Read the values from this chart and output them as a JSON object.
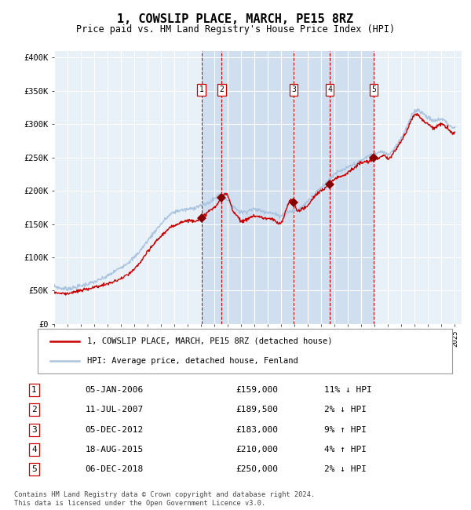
{
  "title": "1, COWSLIP PLACE, MARCH, PE15 8RZ",
  "subtitle": "Price paid vs. HM Land Registry's House Price Index (HPI)",
  "footer_line1": "Contains HM Land Registry data © Crown copyright and database right 2024.",
  "footer_line2": "This data is licensed under the Open Government Licence v3.0.",
  "legend_line1": "1, COWSLIP PLACE, MARCH, PE15 8RZ (detached house)",
  "legend_line2": "HPI: Average price, detached house, Fenland",
  "hpi_color": "#aac4e0",
  "price_color": "#cc0000",
  "marker_color": "#880000",
  "background_color": "#ffffff",
  "chart_bg_color": "#e8f0f8",
  "grid_color": "#ffffff",
  "shade_color": "#d0dff0",
  "vline_color": "#cc0000",
  "ylim": [
    0,
    410000
  ],
  "yticks": [
    0,
    50000,
    100000,
    150000,
    200000,
    250000,
    300000,
    350000,
    400000
  ],
  "ytick_labels": [
    "£0",
    "£50K",
    "£100K",
    "£150K",
    "£200K",
    "£250K",
    "£300K",
    "£350K",
    "£400K"
  ],
  "xlim_start": 1995.0,
  "xlim_end": 2025.5,
  "xtick_years": [
    1995,
    1996,
    1997,
    1998,
    1999,
    2000,
    2001,
    2002,
    2003,
    2004,
    2005,
    2006,
    2007,
    2008,
    2009,
    2010,
    2011,
    2012,
    2013,
    2014,
    2015,
    2016,
    2017,
    2018,
    2019,
    2020,
    2021,
    2022,
    2023,
    2024,
    2025
  ],
  "sales": [
    {
      "num": 1,
      "date": "05-JAN-2006",
      "year": 2006.02,
      "price": 159000,
      "hpi_pct": "11%",
      "hpi_dir": "↓"
    },
    {
      "num": 2,
      "date": "11-JUL-2007",
      "year": 2007.53,
      "price": 189500,
      "hpi_pct": "2%",
      "hpi_dir": "↓"
    },
    {
      "num": 3,
      "date": "05-DEC-2012",
      "year": 2012.92,
      "price": 183000,
      "hpi_pct": "9%",
      "hpi_dir": "↑"
    },
    {
      "num": 4,
      "date": "18-AUG-2015",
      "year": 2015.63,
      "price": 210000,
      "hpi_pct": "4%",
      "hpi_dir": "↑"
    },
    {
      "num": 5,
      "date": "06-DEC-2018",
      "year": 2018.92,
      "price": 250000,
      "hpi_pct": "2%",
      "hpi_dir": "↓"
    }
  ],
  "hpi_keypoints": [
    [
      1995.0,
      57000
    ],
    [
      1996.0,
      53000
    ],
    [
      1997.0,
      57000
    ],
    [
      1998.0,
      63000
    ],
    [
      1999.0,
      72000
    ],
    [
      2000.0,
      85000
    ],
    [
      2001.0,
      100000
    ],
    [
      2002.0,
      125000
    ],
    [
      2003.0,
      150000
    ],
    [
      2004.0,
      168000
    ],
    [
      2005.0,
      172000
    ],
    [
      2006.0,
      178000
    ],
    [
      2007.0,
      188000
    ],
    [
      2007.5,
      195000
    ],
    [
      2008.0,
      185000
    ],
    [
      2008.5,
      175000
    ],
    [
      2009.0,
      168000
    ],
    [
      2009.5,
      170000
    ],
    [
      2010.0,
      172000
    ],
    [
      2010.5,
      170000
    ],
    [
      2011.0,
      168000
    ],
    [
      2011.5,
      165000
    ],
    [
      2012.0,
      163000
    ],
    [
      2012.5,
      168000
    ],
    [
      2013.0,
      170000
    ],
    [
      2013.5,
      175000
    ],
    [
      2014.0,
      185000
    ],
    [
      2014.5,
      195000
    ],
    [
      2015.0,
      205000
    ],
    [
      2015.5,
      215000
    ],
    [
      2016.0,
      225000
    ],
    [
      2016.5,
      230000
    ],
    [
      2017.0,
      235000
    ],
    [
      2017.5,
      240000
    ],
    [
      2018.0,
      245000
    ],
    [
      2018.5,
      252000
    ],
    [
      2019.0,
      255000
    ],
    [
      2019.5,
      258000
    ],
    [
      2020.0,
      255000
    ],
    [
      2020.5,
      265000
    ],
    [
      2021.0,
      280000
    ],
    [
      2021.5,
      300000
    ],
    [
      2022.0,
      320000
    ],
    [
      2022.5,
      318000
    ],
    [
      2023.0,
      310000
    ],
    [
      2023.5,
      305000
    ],
    [
      2024.0,
      308000
    ],
    [
      2024.5,
      300000
    ],
    [
      2025.0,
      295000
    ]
  ],
  "price_keypoints": [
    [
      1995.0,
      48000
    ],
    [
      1996.0,
      46000
    ],
    [
      1997.0,
      50000
    ],
    [
      1998.0,
      55000
    ],
    [
      1999.0,
      60000
    ],
    [
      2000.0,
      68000
    ],
    [
      2001.0,
      82000
    ],
    [
      2002.0,
      108000
    ],
    [
      2003.0,
      132000
    ],
    [
      2004.0,
      148000
    ],
    [
      2005.0,
      155000
    ],
    [
      2006.02,
      159000
    ],
    [
      2006.5,
      168000
    ],
    [
      2007.0,
      175000
    ],
    [
      2007.53,
      189500
    ],
    [
      2008.0,
      192000
    ],
    [
      2008.3,
      175000
    ],
    [
      2008.8,
      160000
    ],
    [
      2009.0,
      155000
    ],
    [
      2009.5,
      158000
    ],
    [
      2010.0,
      162000
    ],
    [
      2010.5,
      160000
    ],
    [
      2011.0,
      158000
    ],
    [
      2011.5,
      155000
    ],
    [
      2012.0,
      152000
    ],
    [
      2012.92,
      183000
    ],
    [
      2013.0,
      178000
    ],
    [
      2013.5,
      172000
    ],
    [
      2014.0,
      178000
    ],
    [
      2014.5,
      192000
    ],
    [
      2015.0,
      200000
    ],
    [
      2015.63,
      210000
    ],
    [
      2016.0,
      218000
    ],
    [
      2016.5,
      222000
    ],
    [
      2017.0,
      228000
    ],
    [
      2017.5,
      235000
    ],
    [
      2018.0,
      242000
    ],
    [
      2018.92,
      250000
    ],
    [
      2019.0,
      252000
    ],
    [
      2019.2,
      248000
    ],
    [
      2019.5,
      252000
    ],
    [
      2020.0,
      248000
    ],
    [
      2020.5,
      260000
    ],
    [
      2021.0,
      275000
    ],
    [
      2021.5,
      295000
    ],
    [
      2022.0,
      315000
    ],
    [
      2022.5,
      308000
    ],
    [
      2023.0,
      300000
    ],
    [
      2023.5,
      295000
    ],
    [
      2024.0,
      300000
    ],
    [
      2024.5,
      292000
    ],
    [
      2025.0,
      288000
    ]
  ]
}
